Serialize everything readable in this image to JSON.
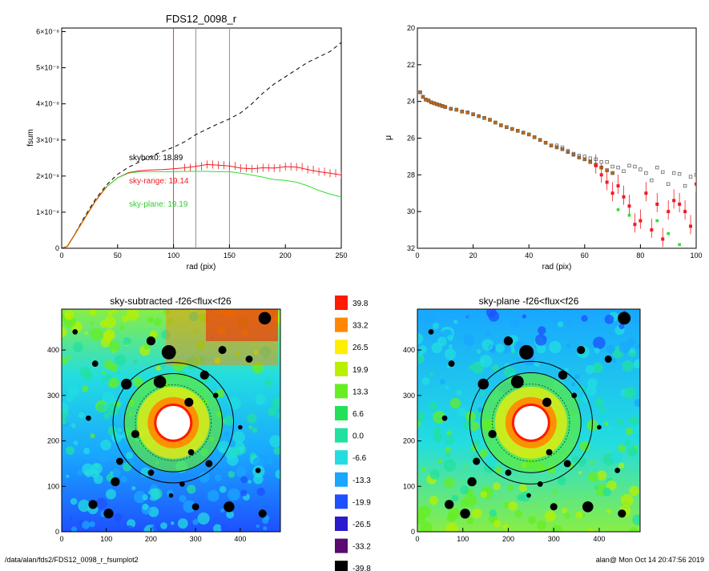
{
  "footer": {
    "path": "/data/alan/fds2/FDS12_0098_r_fsumplot2",
    "stamp": "alan@  Mon Oct 14 20:47:56 2019"
  },
  "colors": {
    "cumulative_curve": "#cc6600",
    "skybox_line": "#000000",
    "sky_range_series": "#ee1c24",
    "sky_plane_series": "#33dd33",
    "marker_red_line": "#ee1c24",
    "marker_gray_lines": "#888888",
    "mask_sources": "#000000",
    "isophote_circles": "#000000"
  },
  "chart_data": [
    {
      "id": "fsum",
      "type": "line",
      "title": "FDS12_0098_r",
      "xlabel": "rad (pix)",
      "ylabel": "fsum",
      "xlim": [
        0,
        250
      ],
      "ylim": [
        0,
        6.1e-08
      ],
      "x_ticks": [
        "0",
        "50",
        "100",
        "150",
        "200",
        "250"
      ],
      "y_ticks": [
        "0",
        "1×10⁻⁸",
        "2×10⁻⁸",
        "3×10⁻⁸",
        "4×10⁻⁸",
        "5×10⁻⁸",
        "6×10⁻⁸"
      ],
      "vlines": [
        100,
        120,
        150
      ],
      "annotations": [
        "skybox0: 18.89",
        "sky-range: 19.14",
        "sky-plane: 19.19"
      ],
      "series": [
        {
          "style": "dashed",
          "x": [
            0,
            5,
            10,
            20,
            30,
            40,
            50,
            60,
            70,
            80,
            90,
            100,
            110,
            120,
            130,
            140,
            150,
            160,
            170,
            180,
            190,
            200,
            210,
            220,
            230,
            240,
            250
          ],
          "y": [
            0,
            5e-10,
            3e-09,
            8.5e-09,
            1.35e-08,
            1.75e-08,
            2.05e-08,
            2.25e-08,
            2.4e-08,
            2.55e-08,
            2.68e-08,
            2.8e-08,
            2.95e-08,
            3.15e-08,
            3.3e-08,
            3.45e-08,
            3.58e-08,
            3.75e-08,
            4e-08,
            4.3e-08,
            4.55e-08,
            4.75e-08,
            4.95e-08,
            5.15e-08,
            5.3e-08,
            5.45e-08,
            5.7e-08
          ]
        },
        {
          "style": "solid",
          "x": [
            0,
            5,
            10,
            20,
            30,
            40,
            50,
            60,
            70,
            80,
            90,
            100,
            110,
            120,
            130,
            140,
            150,
            160,
            170,
            180,
            190,
            200,
            210,
            220,
            230,
            240,
            250
          ],
          "y": [
            0,
            5e-10,
            3e-09,
            8e-09,
            1.3e-08,
            1.7e-08,
            1.95e-08,
            2.1e-08,
            2.15e-08,
            2.17e-08,
            2.18e-08,
            2.2e-08,
            2.23e-08,
            2.27e-08,
            2.32e-08,
            2.3e-08,
            2.28e-08,
            2.22e-08,
            2.2e-08,
            2.23e-08,
            2.22e-08,
            2.26e-08,
            2.25e-08,
            2.18e-08,
            2.12e-08,
            2.08e-08,
            2.03e-08
          ]
        },
        {
          "style": "solid",
          "x": [
            0,
            5,
            10,
            20,
            30,
            40,
            50,
            60,
            70,
            80,
            90,
            100,
            110,
            120,
            130,
            140,
            150,
            160,
            170,
            180,
            190,
            200,
            210,
            220,
            230,
            240,
            250
          ],
          "y": [
            0,
            5e-10,
            3e-09,
            8e-09,
            1.3e-08,
            1.7e-08,
            1.95e-08,
            2.08e-08,
            2.12e-08,
            2.12e-08,
            2.12e-08,
            2.12e-08,
            2.13e-08,
            2.13e-08,
            2.13e-08,
            2.12e-08,
            2.12e-08,
            2.08e-08,
            2.03e-08,
            1.97e-08,
            1.9e-08,
            1.88e-08,
            1.83e-08,
            1.73e-08,
            1.6e-08,
            1.5e-08,
            1.42e-08
          ]
        }
      ]
    },
    {
      "id": "mu",
      "type": "scatter",
      "xlabel": "rad (pix)",
      "ylabel": "μ",
      "xlim": [
        0,
        100
      ],
      "ylim": [
        32,
        20
      ],
      "x_ticks": [
        "0",
        "20",
        "40",
        "60",
        "80",
        "100"
      ],
      "y_ticks": [
        "20",
        "22",
        "24",
        "26",
        "28",
        "30",
        "32"
      ],
      "profile": {
        "x": [
          1,
          2,
          3,
          4,
          5,
          6,
          7,
          8,
          9,
          10,
          12,
          14,
          16,
          18,
          20,
          22,
          24,
          26,
          28,
          30,
          32,
          34,
          36,
          38,
          40,
          42,
          44,
          46,
          48,
          50,
          52,
          54,
          56,
          58,
          60,
          62,
          64,
          66,
          68,
          70
        ],
        "y": [
          23.5,
          23.75,
          23.9,
          23.95,
          24.05,
          24.1,
          24.15,
          24.2,
          24.25,
          24.3,
          24.4,
          24.45,
          24.55,
          24.6,
          24.7,
          24.8,
          24.9,
          25.0,
          25.15,
          25.3,
          25.4,
          25.5,
          25.6,
          25.7,
          25.8,
          25.95,
          26.1,
          26.25,
          26.4,
          26.5,
          26.6,
          26.75,
          26.9,
          27.05,
          27.15,
          27.3,
          27.45,
          27.6,
          27.75,
          27.9
        ]
      },
      "gray_points": {
        "x": [
          50,
          52,
          54,
          56,
          58,
          60,
          62,
          64,
          66,
          68,
          70,
          72,
          74,
          76,
          78,
          80,
          82,
          84,
          86,
          88,
          90,
          92,
          94,
          96,
          98,
          100
        ],
        "y": [
          26.4,
          26.5,
          26.7,
          26.85,
          26.95,
          27.0,
          27.1,
          27.15,
          27.3,
          27.3,
          27.55,
          27.6,
          27.8,
          27.5,
          27.55,
          27.7,
          27.9,
          28.3,
          27.6,
          27.85,
          28.5,
          27.9,
          27.95,
          28.6,
          28.1,
          28.0
        ]
      },
      "red_points": {
        "x": [
          64,
          66,
          68,
          70,
          72,
          74,
          76,
          78,
          80,
          82,
          84,
          86,
          88,
          90,
          92,
          94,
          96,
          98,
          100
        ],
        "y": [
          27.5,
          28.0,
          28.4,
          29.0,
          28.6,
          29.2,
          29.7,
          30.7,
          30.5,
          29.0,
          31.0,
          29.6,
          31.5,
          30.0,
          29.4,
          29.6,
          30.0,
          30.8,
          28.5
        ]
      },
      "green_points": {
        "x": [
          72,
          76,
          86,
          90,
          94
        ],
        "y": [
          29.9,
          30.2,
          30.5,
          31.2,
          31.8
        ]
      }
    },
    {
      "id": "map-subtracted",
      "type": "heatmap",
      "title": "sky-subtracted -f26<flux<f26",
      "xlim": [
        0,
        490
      ],
      "ylim": [
        0,
        490
      ],
      "x_ticks": [
        "0",
        "100",
        "200",
        "300",
        "400"
      ],
      "y_ticks": [
        "0",
        "100",
        "200",
        "300",
        "400"
      ],
      "center": [
        250,
        240
      ],
      "ring_radii": [
        135,
        110,
        85
      ]
    },
    {
      "id": "map-plane",
      "type": "heatmap",
      "title": "sky-plane -f26<flux<f26",
      "xlim": [
        0,
        490
      ],
      "ylim": [
        0,
        490
      ],
      "x_ticks": [
        "0",
        "100",
        "200",
        "300",
        "400"
      ],
      "y_ticks": [
        "0",
        "100",
        "200",
        "300",
        "400"
      ],
      "center": [
        250,
        240
      ],
      "ring_radii": [
        135,
        110,
        85
      ]
    },
    {
      "id": "colorbar",
      "type": "table",
      "labels": [
        "39.8",
        "33.2",
        "26.5",
        "19.9",
        "13.3",
        "6.6",
        "0.0",
        "-6.6",
        "-13.3",
        "-19.9",
        "-26.5",
        "-33.2",
        "-39.8"
      ],
      "colors": [
        "#ff1a00",
        "#ff8800",
        "#ffee00",
        "#b8f000",
        "#66ee22",
        "#22e05a",
        "#22e0a0",
        "#22dde0",
        "#19a7ff",
        "#1e50ff",
        "#2a1bcc",
        "#5a0a70",
        "#000000"
      ]
    }
  ]
}
